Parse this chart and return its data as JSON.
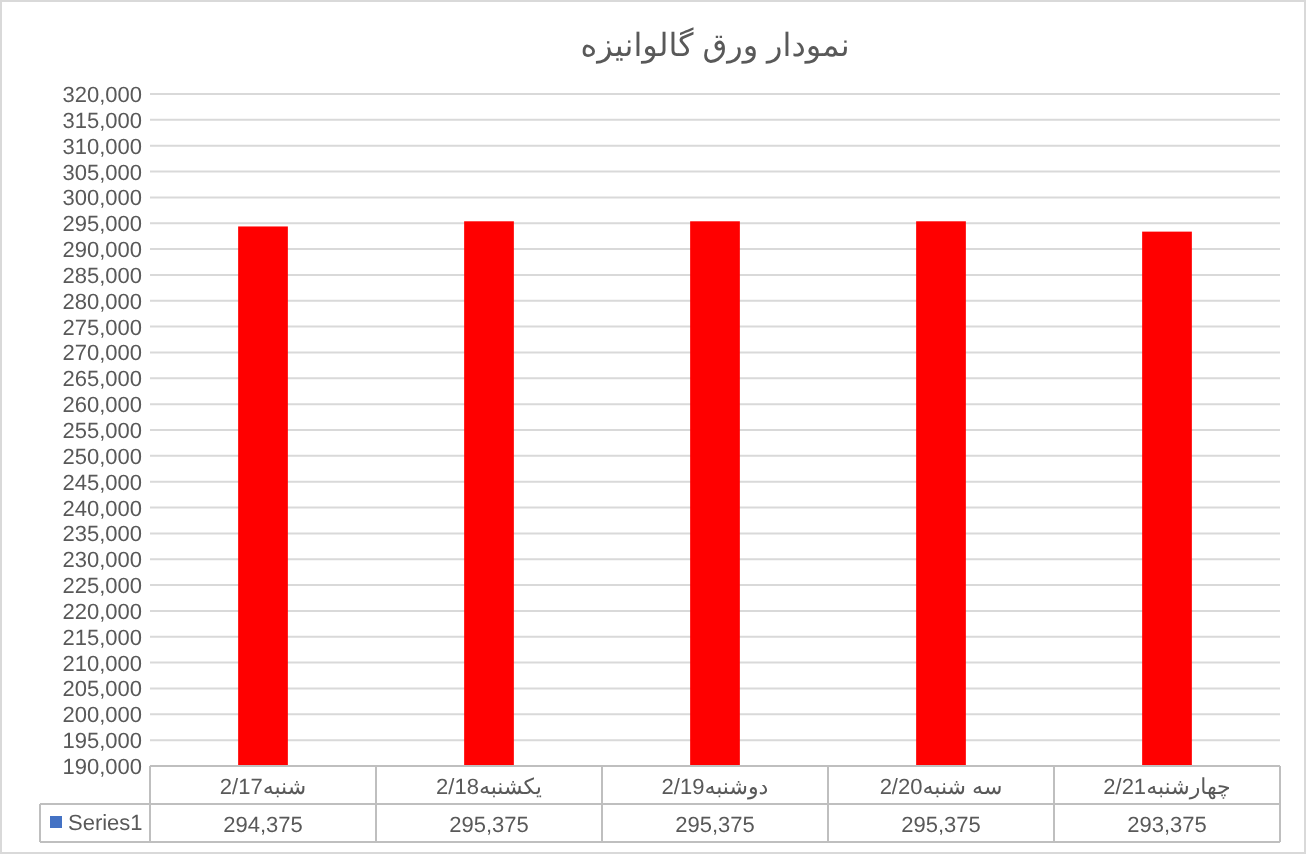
{
  "chart_data": {
    "type": "bar",
    "title": "نمودار ورق گالوانیزه",
    "categories": [
      "شنبه2/17",
      "یکشنبه2/18",
      "دوشنبه2/19",
      "سه شنبه2/20",
      "چهارشنبه2/21"
    ],
    "series": [
      {
        "name": "Series1",
        "color": "#ff0000",
        "values": [
          294375,
          295375,
          295375,
          295375,
          293375
        ],
        "value_labels": [
          "294,375",
          "295,375",
          "295,375",
          "295,375",
          "293,375"
        ]
      }
    ],
    "ylim": [
      190000,
      320000
    ],
    "yticks": [
      {
        "value": 190000,
        "label": "190,000"
      },
      {
        "value": 195000,
        "label": "195,000"
      },
      {
        "value": 200000,
        "label": "200,000"
      },
      {
        "value": 205000,
        "label": "205,000"
      },
      {
        "value": 210000,
        "label": "210,000"
      },
      {
        "value": 215000,
        "label": "215,000"
      },
      {
        "value": 220000,
        "label": "220,000"
      },
      {
        "value": 225000,
        "label": "225,000"
      },
      {
        "value": 230000,
        "label": "230,000"
      },
      {
        "value": 235000,
        "label": "235,000"
      },
      {
        "value": 240000,
        "label": "240,000"
      },
      {
        "value": 245000,
        "label": "245,000"
      },
      {
        "value": 250000,
        "label": "250,000"
      },
      {
        "value": 255000,
        "label": "255,000"
      },
      {
        "value": 260000,
        "label": "260,000"
      },
      {
        "value": 265000,
        "label": "265,000"
      },
      {
        "value": 270000,
        "label": "270,000"
      },
      {
        "value": 275000,
        "label": "275,000"
      },
      {
        "value": 280000,
        "label": "280,000"
      },
      {
        "value": 285000,
        "label": "285,000"
      },
      {
        "value": 290000,
        "label": "290,000"
      },
      {
        "value": 295000,
        "label": "295,000"
      },
      {
        "value": 300000,
        "label": "300,000"
      },
      {
        "value": 305000,
        "label": "305,000"
      },
      {
        "value": 310000,
        "label": "310,000"
      },
      {
        "value": 315000,
        "label": "315,000"
      },
      {
        "value": 320000,
        "label": "320,000"
      }
    ],
    "grid": "y"
  }
}
